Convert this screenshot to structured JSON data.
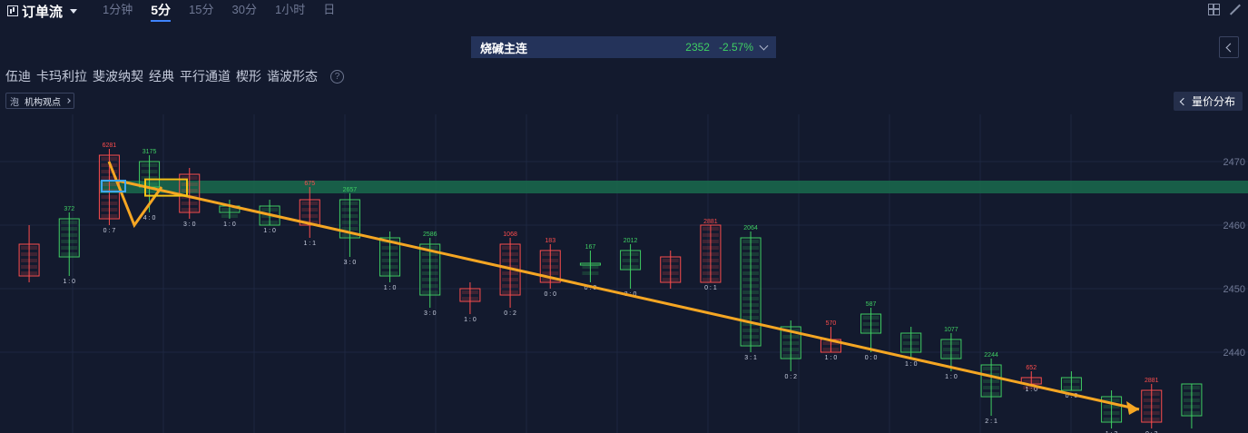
{
  "header": {
    "title": "订单流",
    "intervals": [
      {
        "label": "1分钟",
        "active": false
      },
      {
        "label": "5分",
        "active": true
      },
      {
        "label": "15分",
        "active": false
      },
      {
        "label": "30分",
        "active": false
      },
      {
        "label": "1小时",
        "active": false
      },
      {
        "label": "日",
        "active": false
      }
    ],
    "icons": [
      "chart-icon",
      "grid-layout-icon",
      "collapse-icon"
    ]
  },
  "symbol": {
    "name": "烧碱主连",
    "price": "2352",
    "change": "-2.57%",
    "color": "#3fcf63"
  },
  "tools": [
    "伍迪",
    "卡玛利拉",
    "斐波纳契",
    "经典",
    "平行通道",
    "楔形",
    "谐波形态"
  ],
  "view_toggle": {
    "icon_text": "泡",
    "label": "机构观点"
  },
  "distribution_button": {
    "label": "量价分布"
  },
  "colors": {
    "background": "#131a2e",
    "bull": "#3fcf63",
    "bear": "#ff4d4d",
    "accent": "#3f84ff",
    "arrow": "#f5a623",
    "zone": "#1a6b4c"
  },
  "chart_data": {
    "type": "footprint",
    "y_axis": {
      "ticks": [
        2470,
        2460,
        2450,
        2440
      ],
      "min": 2428,
      "max": 2476
    },
    "zone": [
      2465,
      2467
    ],
    "trend_line": {
      "from": 2467,
      "to": 2431
    },
    "candles": [
      {
        "open": 2457,
        "close": 2452,
        "high": 2460,
        "low": 2451,
        "top": "",
        "bottom": ""
      },
      {
        "open": 2455,
        "close": 2461,
        "high": 2462,
        "low": 2452,
        "top": "372",
        "bottom": "1 : 0"
      },
      {
        "open": 2471,
        "close": 2461,
        "high": 2472,
        "low": 2460,
        "top": "6281",
        "bottom": "0 : 7"
      },
      {
        "open": 2466,
        "close": 2470,
        "high": 2471,
        "low": 2462,
        "top": "3175",
        "bottom": "4 : 0"
      },
      {
        "open": 2468,
        "close": 2462,
        "high": 2469,
        "low": 2461,
        "top": "",
        "bottom": "3 : 0"
      },
      {
        "open": 2462,
        "close": 2463,
        "high": 2464,
        "low": 2461,
        "top": "",
        "bottom": "1 : 0"
      },
      {
        "open": 2460,
        "close": 2463,
        "high": 2464,
        "low": 2460,
        "top": "",
        "bottom": "1 : 0"
      },
      {
        "open": 2464,
        "close": 2460,
        "high": 2466,
        "low": 2458,
        "top": "675",
        "bottom": "1 : 1"
      },
      {
        "open": 2458,
        "close": 2464,
        "high": 2465,
        "low": 2455,
        "top": "2657",
        "bottom": "3 : 0"
      },
      {
        "open": 2452,
        "close": 2458,
        "high": 2459,
        "low": 2451,
        "top": "",
        "bottom": "1 : 0"
      },
      {
        "open": 2449,
        "close": 2457,
        "high": 2458,
        "low": 2447,
        "top": "2586",
        "bottom": "3 : 0"
      },
      {
        "open": 2450,
        "close": 2448,
        "high": 2451,
        "low": 2446,
        "top": "",
        "bottom": "1 : 0"
      },
      {
        "open": 2457,
        "close": 2449,
        "high": 2458,
        "low": 2447,
        "top": "1068",
        "bottom": "0 : 2"
      },
      {
        "open": 2456,
        "close": 2451,
        "high": 2457,
        "low": 2450,
        "top": "183",
        "bottom": "0 : 0"
      },
      {
        "open": 2454,
        "close": 2454,
        "high": 2456,
        "low": 2451,
        "top": "167",
        "bottom": "0 : 0"
      },
      {
        "open": 2453,
        "close": 2456,
        "high": 2457,
        "low": 2450,
        "top": "2012",
        "bottom": "3 : 0"
      },
      {
        "open": 2455,
        "close": 2451,
        "high": 2456,
        "low": 2450,
        "top": "",
        "bottom": ""
      },
      {
        "open": 2460,
        "close": 2451,
        "high": 2460,
        "low": 2451,
        "top": "2881",
        "bottom": "0 : 1"
      },
      {
        "open": 2441,
        "close": 2458,
        "high": 2459,
        "low": 2440,
        "top": "2064",
        "bottom": "3 : 1"
      },
      {
        "open": 2439,
        "close": 2444,
        "high": 2445,
        "low": 2437,
        "top": "",
        "bottom": "0 : 2"
      },
      {
        "open": 2442,
        "close": 2440,
        "high": 2444,
        "low": 2440,
        "top": "570",
        "bottom": "1 : 0"
      },
      {
        "open": 2443,
        "close": 2446,
        "high": 2447,
        "low": 2440,
        "top": "587",
        "bottom": "0 : 0"
      },
      {
        "open": 2440,
        "close": 2443,
        "high": 2444,
        "low": 2439,
        "top": "",
        "bottom": "1 : 0"
      },
      {
        "open": 2439,
        "close": 2442,
        "high": 2443,
        "low": 2437,
        "top": "1077",
        "bottom": "1 : 0"
      },
      {
        "open": 2433,
        "close": 2438,
        "high": 2439,
        "low": 2430,
        "top": "2244",
        "bottom": "2 : 1"
      },
      {
        "open": 2436,
        "close": 2435,
        "high": 2437,
        "low": 2435,
        "top": "652",
        "bottom": "1 : 0"
      },
      {
        "open": 2434,
        "close": 2436,
        "high": 2437,
        "low": 2434,
        "top": "",
        "bottom": "0 : 0"
      },
      {
        "open": 2429,
        "close": 2433,
        "high": 2434,
        "low": 2428,
        "top": "",
        "bottom": "1 : 3"
      },
      {
        "open": 2434,
        "close": 2429,
        "high": 2435,
        "low": 2428,
        "top": "2881",
        "bottom": "0 : 3"
      },
      {
        "open": 2430,
        "close": 2435,
        "high": 2435,
        "low": 2428,
        "top": "",
        "bottom": ""
      }
    ]
  }
}
